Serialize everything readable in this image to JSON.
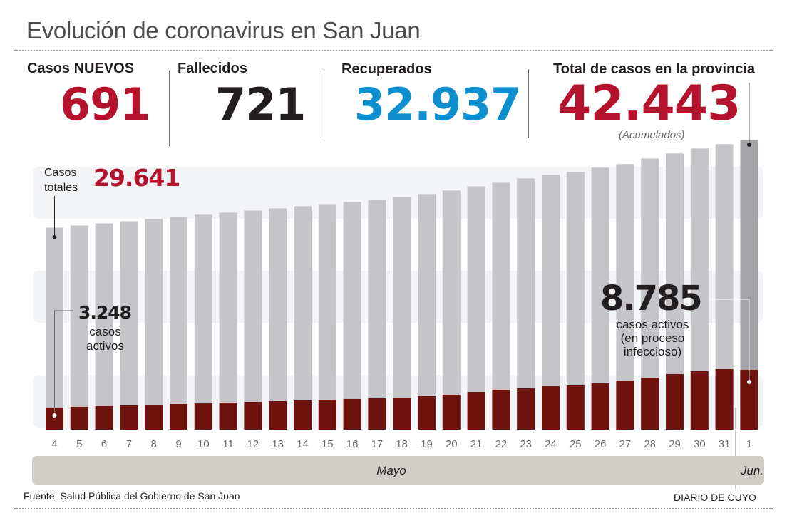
{
  "header": {
    "title": "Evolución de coronavirus en San Juan"
  },
  "stats": {
    "new_cases": {
      "label": "Casos NUEVOS",
      "value": "691"
    },
    "deaths": {
      "label": "Fallecidos",
      "value": "721"
    },
    "recovered": {
      "label": "Recuperados",
      "value": "32.937"
    },
    "total": {
      "label": "Total de casos en la provincia",
      "value": "42.443",
      "note": "(Acumulados)"
    }
  },
  "annotations": {
    "first_total_label": [
      "Casos",
      "totales"
    ],
    "first_total_value": "29.641",
    "first_active_value": "3.248",
    "first_active_label": [
      "casos",
      "activos"
    ],
    "last_active_value": "8.785",
    "last_active_label": [
      "casos activos",
      "(en proceso",
      "infeccioso)"
    ]
  },
  "colors": {
    "red_accent": "#b5122e",
    "blue_accent": "#0e8fcf",
    "total_bar": "#c4c4c9",
    "total_bar_last": "#a4a4a8",
    "active_bar": "#6e120d",
    "band": "#f3f4f6",
    "month_band": "#cfcec8"
  },
  "chart_data": {
    "type": "bar",
    "title": "Evolución de coronavirus en San Juan",
    "xlabel": "",
    "ylabel": "",
    "categories": [
      "4",
      "5",
      "6",
      "7",
      "8",
      "9",
      "10",
      "11",
      "12",
      "13",
      "14",
      "15",
      "16",
      "17",
      "18",
      "19",
      "20",
      "21",
      "22",
      "23",
      "24",
      "25",
      "26",
      "27",
      "28",
      "29",
      "30",
      "31",
      "1"
    ],
    "months": [
      {
        "label": "Mayo",
        "from": "4",
        "to": "31"
      },
      {
        "label": "Jun.",
        "from": "1",
        "to": "1"
      }
    ],
    "series": [
      {
        "name": "Casos totales",
        "values": [
          29641,
          29950,
          30270,
          30590,
          30900,
          31210,
          31530,
          31840,
          32150,
          32470,
          32780,
          33100,
          33410,
          33730,
          34150,
          34570,
          35090,
          35710,
          36240,
          36870,
          37390,
          37810,
          38430,
          38960,
          39790,
          40530,
          41260,
          41890,
          42443
        ]
      },
      {
        "name": "Casos activos",
        "values": [
          3248,
          3350,
          3450,
          3560,
          3650,
          3760,
          3860,
          3970,
          4080,
          4180,
          4290,
          4390,
          4500,
          4600,
          4700,
          4910,
          5120,
          5540,
          5850,
          6060,
          6370,
          6480,
          6790,
          7210,
          7630,
          8150,
          8570,
          8890,
          8785
        ]
      }
    ],
    "ylim": [
      0,
      45000
    ],
    "grid": false,
    "legend": "none"
  },
  "footer": {
    "source": "Fuente: Salud Pública del Gobierno de San Juan",
    "brand": "DIARIO DE CUYO"
  }
}
